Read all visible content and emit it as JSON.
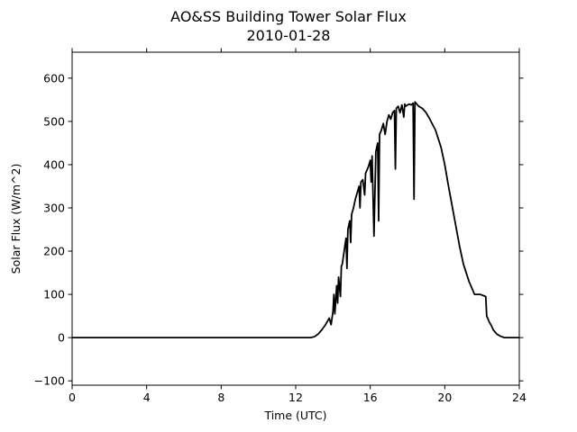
{
  "chart_data": {
    "type": "line",
    "title": "AO&SS Building Tower Solar Flux",
    "subtitle": "2010-01-28",
    "xlabel": "Time (UTC)",
    "ylabel": "Solar Flux (W/m^2)",
    "xlim": [
      0,
      24
    ],
    "ylim": [
      -110,
      660
    ],
    "xticks": [
      0,
      4,
      8,
      12,
      16,
      20,
      24
    ],
    "yticks": [
      -100,
      0,
      100,
      200,
      300,
      400,
      500,
      600
    ],
    "grid": false,
    "legend": "none",
    "series": [
      {
        "color": "#000000",
        "x": [
          0,
          12.8,
          13.0,
          13.2,
          13.4,
          13.6,
          13.8,
          13.9,
          14.0,
          14.05,
          14.1,
          14.2,
          14.25,
          14.3,
          14.4,
          14.45,
          14.5,
          14.6,
          14.7,
          14.75,
          14.8,
          14.9,
          14.95,
          15.0,
          15.1,
          15.2,
          15.3,
          15.4,
          15.45,
          15.5,
          15.6,
          15.7,
          15.75,
          15.8,
          15.9,
          16.0,
          16.05,
          16.1,
          16.2,
          16.3,
          16.4,
          16.45,
          16.5,
          16.6,
          16.7,
          16.8,
          16.9,
          17.0,
          17.1,
          17.2,
          17.3,
          17.35,
          17.4,
          17.5,
          17.6,
          17.7,
          17.8,
          17.85,
          17.9,
          18.0,
          18.1,
          18.2,
          18.3,
          18.35,
          18.4,
          18.5,
          18.6,
          18.8,
          19.0,
          19.2,
          19.5,
          19.8,
          20.0,
          20.2,
          20.5,
          20.8,
          21.0,
          21.3,
          21.6,
          21.9,
          22.2,
          22.25,
          22.3,
          22.35,
          22.4,
          22.5,
          22.6,
          22.8,
          23.0,
          23.2,
          23.5,
          24.0
        ],
        "y": [
          0,
          0,
          2,
          8,
          18,
          30,
          45,
          30,
          60,
          100,
          55,
          120,
          80,
          140,
          95,
          165,
          170,
          200,
          230,
          160,
          250,
          270,
          220,
          285,
          300,
          320,
          335,
          350,
          300,
          360,
          365,
          330,
          380,
          385,
          395,
          410,
          360,
          420,
          235,
          430,
          450,
          270,
          470,
          480,
          495,
          470,
          500,
          515,
          505,
          520,
          525,
          390,
          530,
          535,
          520,
          538,
          510,
          540,
          535,
          538,
          540,
          538,
          542,
          320,
          545,
          540,
          535,
          530,
          520,
          505,
          480,
          440,
          400,
          350,
          280,
          210,
          170,
          130,
          100,
          100,
          95,
          50,
          45,
          40,
          35,
          28,
          18,
          8,
          3,
          0,
          0,
          0
        ]
      }
    ]
  }
}
